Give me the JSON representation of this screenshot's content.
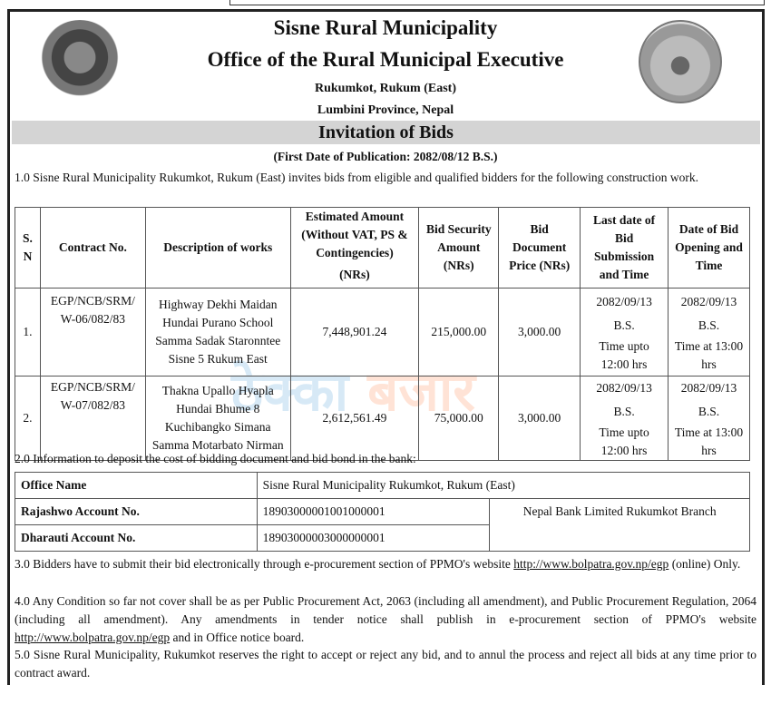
{
  "header": {
    "title": "Sisne Rural Municipality",
    "office": "Office of the Rural Municipal Executive",
    "address": "Rukumkot, Rukum (East)",
    "province": "Lumbini Province, Nepal",
    "notice_title": "Invitation of Bids",
    "publication": "(First Date of Publication: 2082/08/12 B.S.)",
    "emblems": [
      "nepal-coat-of-arms",
      "municipality-logo"
    ]
  },
  "watermark": {
    "part1": "ठेक्का",
    "part2": "बजार",
    "colors": [
      "#2a8ad0",
      "#ff6a20"
    ]
  },
  "intro": "1.0 Sisne Rural Municipality Rukumkot, Rukum (East) invites bids from eligible and qualified bidders for the following construction work.",
  "bids_table": {
    "headers": [
      "S. N",
      "Contract No.",
      "Description of works",
      "Estimated Amount (Without VAT, PS & Contingencies)",
      "Bid Security Amount (NRs)",
      "Bid Document Price (NRs)",
      "Last date of Bid Submission and Time",
      "Date of Bid Opening and Time"
    ],
    "est_unit": "(NRs)",
    "rows": [
      {
        "sn": "1.",
        "contract": "EGP/NCB/SRM/ W-06/082/83",
        "description": "Highway Dekhi Maidan Hundai Purano School Samma Sadak Staronntee Sisne 5 Rukum East",
        "estimate": "7,448,901.24",
        "security": "215,000.00",
        "doc_price": "3,000.00",
        "last_date": "2082/09/13",
        "last_bs": "B.S.",
        "last_time": "Time upto 12:00 hrs",
        "open_date": "2082/09/13",
        "open_bs": "B.S.",
        "open_time": "Time at 13:00 hrs"
      },
      {
        "sn": "2.",
        "contract": "EGP/NCB/SRM/ W-07/082/83",
        "description": "Thakna Upallo Hyapla Hundai Bhume 8 Kuchibangko Simana Samma Motarbato Nirman",
        "estimate": "2,612,561.49",
        "security": "75,000.00",
        "doc_price": "3,000.00",
        "last_date": "2082/09/13",
        "last_bs": "B.S.",
        "last_time": "Time upto 12:00 hrs",
        "open_date": "2082/09/13",
        "open_bs": "B.S.",
        "open_time": "Time at 13:00 hrs"
      }
    ]
  },
  "bank_intro": "2.0 Information to deposit the cost of bidding document and bid bond in the bank:",
  "bank": {
    "office_label": "Office Name",
    "office_value": "Sisne Rural Municipality Rukumkot, Rukum (East)",
    "rajashwo_label": "Rajashwo Account No.",
    "rajashwo_value": "18903000001001000001",
    "dharauti_label": "Dharauti Account No.",
    "dharauti_value": "18903000003000000001",
    "bank_name": "Nepal Bank Limited Rukumkot Branch"
  },
  "clause3": {
    "pre": "3.0 Bidders have to submit their bid electronically through e-procurement section of PPMO's website ",
    "link": "http://www.bolpatra.gov.np/egp",
    "post": " (online) Only."
  },
  "clause4": {
    "pre": "4.0  Any Condition so far not cover shall be as per Public Procurement Act, 2063 (including all amendment), and Public Procurement Regulation, 2064 (including all amendment). Any amendments in tender notice shall publish in e-procurement section of PPMO's website ",
    "link": "http://www.bolpatra.gov.np/egp",
    "post": " and in Office notice board."
  },
  "clause5": "5.0  Sisne Rural Municipality, Rukumkot reserves the right to accept or reject any bid, and to annul the process and reject all bids at any time prior to contract award."
}
